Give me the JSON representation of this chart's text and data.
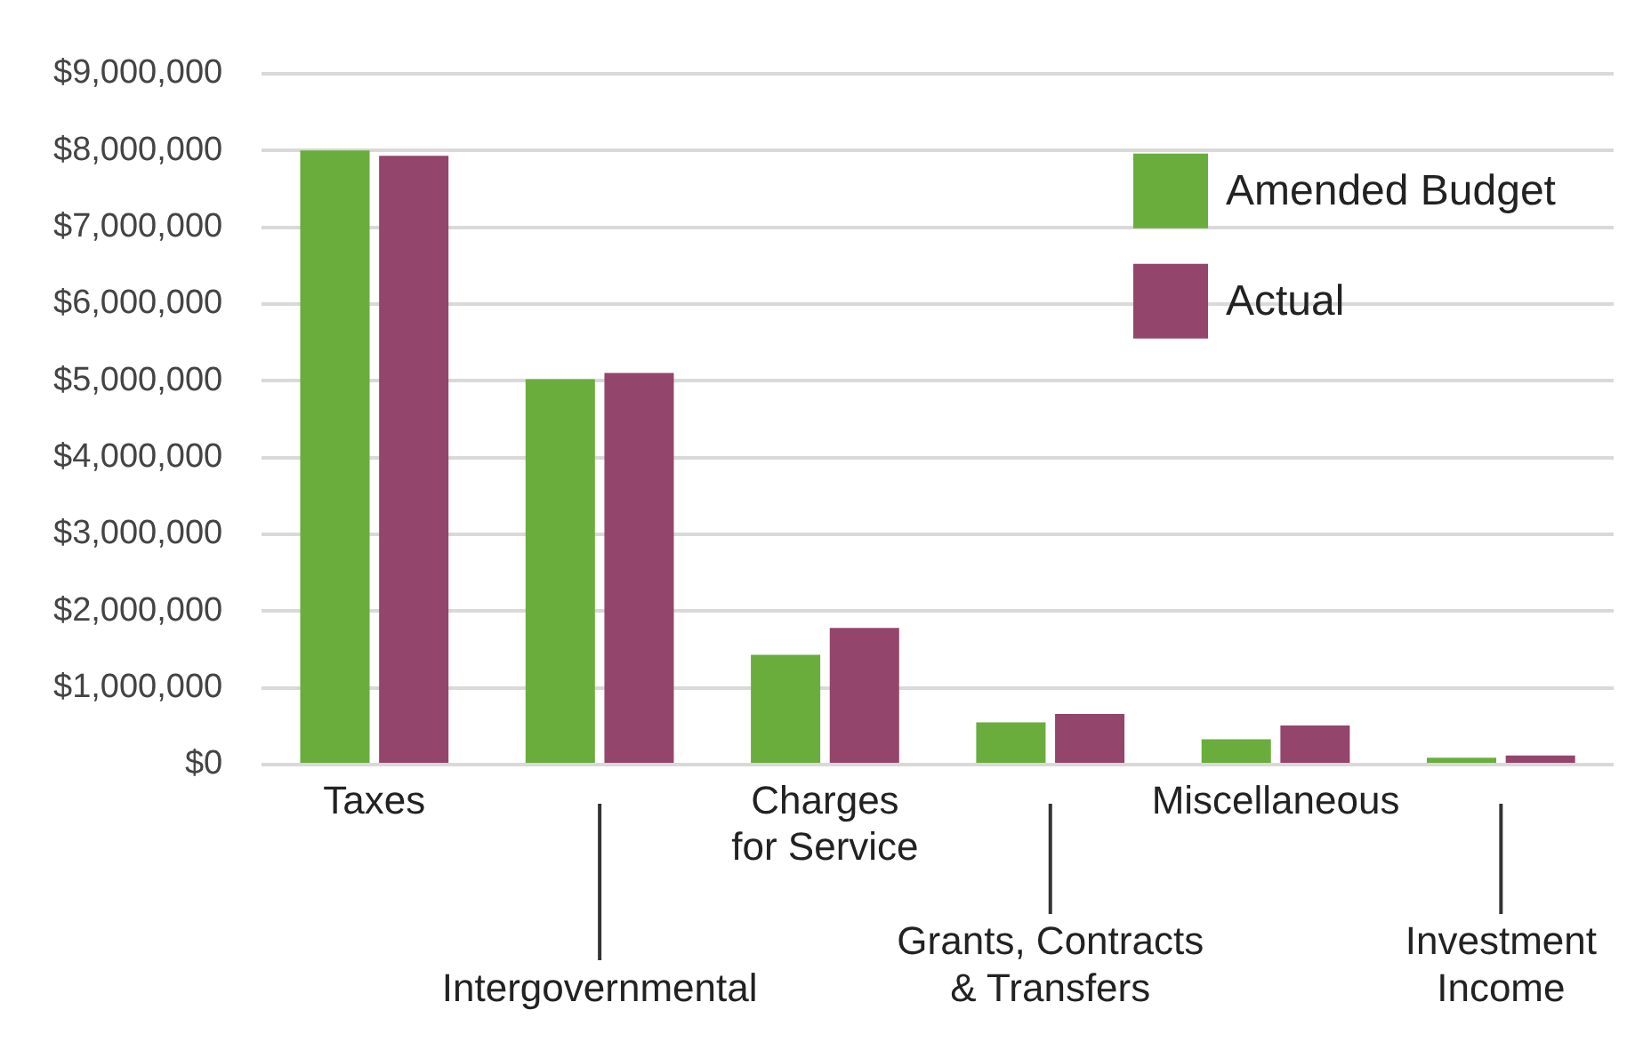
{
  "chart_data": {
    "type": "bar",
    "categories": [
      "Taxes",
      "Intergovernmental",
      "Charges\nfor Service",
      "Grants, Contracts\n& Transfers",
      "Miscellaneous",
      "Investment\nIncome"
    ],
    "series": [
      {
        "name": "Amended Budget",
        "color": "#6aad3d",
        "values": [
          8000000,
          5020000,
          1430000,
          550000,
          330000,
          90000
        ]
      },
      {
        "name": "Actual",
        "color": "#94456c",
        "values": [
          7930000,
          5100000,
          1780000,
          660000,
          510000,
          120000
        ]
      }
    ],
    "ylim": [
      0,
      9000000
    ],
    "yticks": [
      {
        "value": 0,
        "label": "$0"
      },
      {
        "value": 1000000,
        "label": "$1,000,000"
      },
      {
        "value": 2000000,
        "label": "$2,000,000"
      },
      {
        "value": 3000000,
        "label": "$3,000,000"
      },
      {
        "value": 4000000,
        "label": "$4,000,000"
      },
      {
        "value": 5000000,
        "label": "$5,000,000"
      },
      {
        "value": 6000000,
        "label": "$6,000,000"
      },
      {
        "value": 7000000,
        "label": "$7,000,000"
      },
      {
        "value": 8000000,
        "label": "$8,000,000"
      },
      {
        "value": 9000000,
        "label": "$9,000,000"
      }
    ],
    "grid": "y",
    "legend": "top right"
  }
}
